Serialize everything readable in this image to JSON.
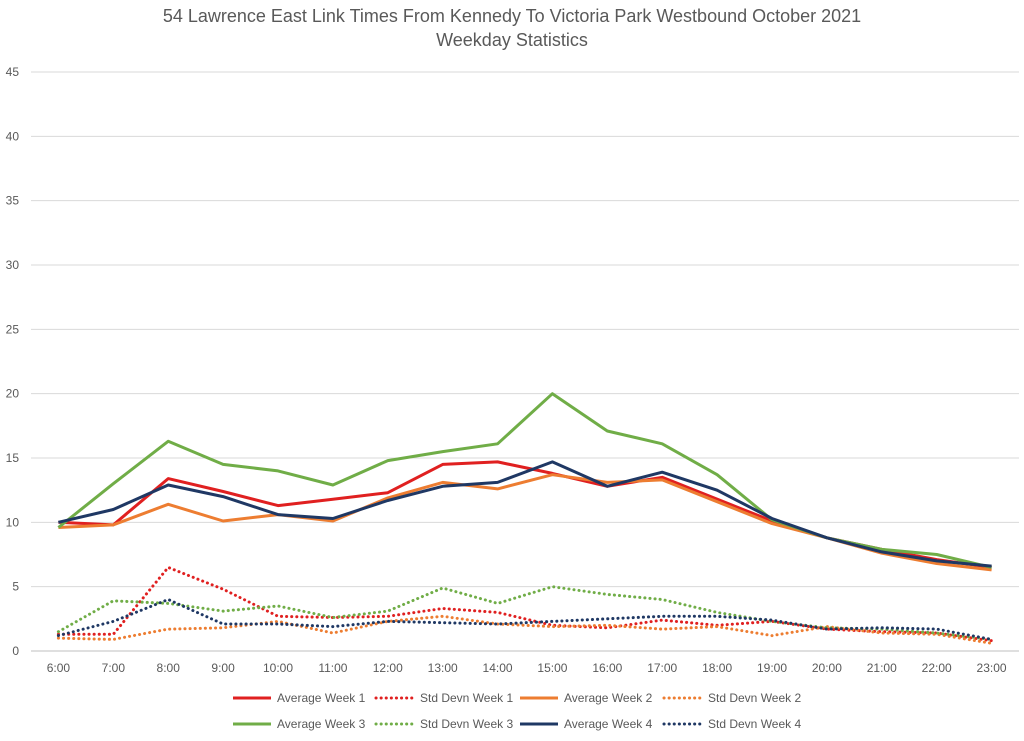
{
  "chart_data": {
    "type": "line",
    "title": "54 Lawrence East Link Times From Kennedy To Victoria Park Westbound October 2021",
    "subtitle": "Weekday Statistics",
    "xlabel": "",
    "ylabel": "",
    "ylim": [
      0,
      45
    ],
    "yticks": [
      "0",
      "5",
      "10",
      "15",
      "20",
      "25",
      "30",
      "35",
      "40",
      "45"
    ],
    "grid": true,
    "legend_position": "bottom",
    "categories": [
      "6:00",
      "7:00",
      "8:00",
      "9:00",
      "10:00",
      "11:00",
      "12:00",
      "13:00",
      "14:00",
      "15:00",
      "16:00",
      "17:00",
      "18:00",
      "19:00",
      "20:00",
      "21:00",
      "22:00",
      "23:00"
    ],
    "series": [
      {
        "name": "Average Week 1",
        "color": "#e02020",
        "style": "solid",
        "values": [
          10.0,
          9.8,
          13.4,
          12.4,
          11.3,
          11.8,
          12.3,
          14.5,
          14.7,
          13.8,
          12.8,
          13.5,
          11.8,
          10.1,
          8.8,
          7.9,
          7.1,
          6.5
        ]
      },
      {
        "name": "Std Devn Week 1",
        "color": "#e02020",
        "style": "dotted",
        "values": [
          1.3,
          1.3,
          6.5,
          4.8,
          2.7,
          2.6,
          2.7,
          3.3,
          3.0,
          2.0,
          1.8,
          2.4,
          2.0,
          2.3,
          1.7,
          1.5,
          1.4,
          0.8
        ]
      },
      {
        "name": "Average Week 2",
        "color": "#ed7d31",
        "style": "solid",
        "values": [
          9.6,
          9.8,
          11.4,
          10.1,
          10.6,
          10.1,
          11.9,
          13.1,
          12.6,
          13.7,
          13.1,
          13.3,
          11.6,
          9.9,
          8.8,
          7.6,
          6.8,
          6.3
        ]
      },
      {
        "name": "Std Devn Week 2",
        "color": "#ed7d31",
        "style": "dotted",
        "values": [
          1.0,
          0.9,
          1.7,
          1.8,
          2.3,
          1.4,
          2.3,
          2.7,
          2.1,
          1.9,
          2.0,
          1.7,
          1.9,
          1.2,
          1.9,
          1.4,
          1.3,
          0.6
        ]
      },
      {
        "name": "Average Week 3",
        "color": "#70ad47",
        "style": "solid",
        "values": [
          9.6,
          13.0,
          16.3,
          14.5,
          14.0,
          12.9,
          14.8,
          15.5,
          16.1,
          20.0,
          17.1,
          16.1,
          13.7,
          10.2,
          8.8,
          7.9,
          7.5,
          6.5
        ]
      },
      {
        "name": "Std Devn Week 3",
        "color": "#70ad47",
        "style": "dotted",
        "values": [
          1.5,
          3.9,
          3.7,
          3.1,
          3.5,
          2.6,
          3.1,
          4.9,
          3.7,
          5.0,
          4.4,
          4.0,
          3.0,
          2.3,
          1.8,
          1.7,
          1.4,
          0.9
        ]
      },
      {
        "name": "Average Week 4",
        "color": "#1f3864",
        "style": "solid",
        "values": [
          10.0,
          11.0,
          12.9,
          12.0,
          10.6,
          10.3,
          11.7,
          12.8,
          13.1,
          14.7,
          12.8,
          13.9,
          12.5,
          10.3,
          8.8,
          7.7,
          7.0,
          6.6
        ]
      },
      {
        "name": "Std Devn Week 4",
        "color": "#1f3864",
        "style": "dotted",
        "values": [
          1.2,
          2.3,
          4.0,
          2.1,
          2.1,
          1.9,
          2.3,
          2.2,
          2.1,
          2.3,
          2.5,
          2.7,
          2.7,
          2.4,
          1.7,
          1.8,
          1.7,
          0.9
        ]
      }
    ]
  }
}
